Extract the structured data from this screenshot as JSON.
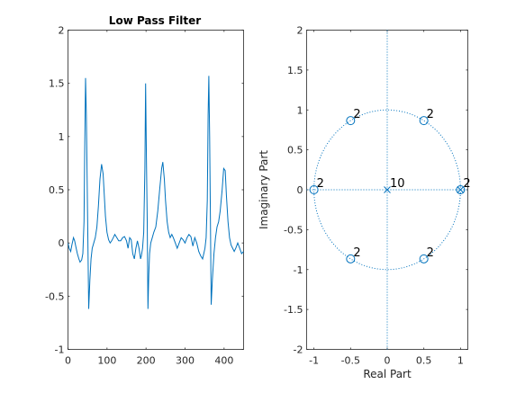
{
  "colors": {
    "axis": "#262626",
    "line": "#0072bd",
    "background": "#ffffff"
  },
  "chart_data": [
    {
      "type": "line",
      "title": "Low Pass Filter",
      "xlabel": "",
      "ylabel": "",
      "xlim": [
        0,
        450
      ],
      "ylim": [
        -1,
        2
      ],
      "xticks": [
        0,
        100,
        200,
        300,
        400
      ],
      "yticks": [
        -1,
        -0.5,
        0,
        0.5,
        1,
        1.5,
        2
      ],
      "ytick_labels": [
        "-1",
        "-0.5",
        "0",
        "0.5",
        "1",
        "1.5",
        "2"
      ],
      "grid": false,
      "series": [
        {
          "x": [
            0,
            3,
            7,
            10,
            14,
            17,
            21,
            24,
            28,
            31,
            35,
            38,
            41,
            43,
            45,
            47,
            50,
            53,
            56,
            59,
            62,
            66,
            70,
            74,
            78,
            82,
            86,
            90,
            93,
            96,
            100,
            104,
            108,
            112,
            116,
            120,
            125,
            130,
            135,
            140,
            145,
            150,
            154,
            158,
            162,
            166,
            170,
            174,
            178,
            182,
            186,
            188,
            191,
            194,
            197,
            199,
            201,
            203,
            205,
            207,
            209,
            212,
            216,
            220,
            225,
            230,
            235,
            240,
            243,
            247,
            250,
            254,
            258,
            262,
            266,
            270,
            275,
            280,
            285,
            290,
            295,
            300,
            305,
            310,
            315,
            320,
            325,
            330,
            335,
            340,
            345,
            348,
            351,
            354,
            357,
            359,
            361,
            363,
            365,
            367,
            370,
            374,
            378,
            382,
            386,
            390,
            395,
            399,
            403,
            406,
            410,
            414,
            418,
            422,
            426,
            430,
            435,
            440,
            445,
            450
          ],
          "y": [
            0,
            -0.05,
            -0.08,
            -0.02,
            0.05,
            0.02,
            -0.05,
            -0.1,
            -0.15,
            -0.18,
            -0.16,
            -0.1,
            0.2,
            0.9,
            1.55,
            1.2,
            0.3,
            -0.62,
            -0.35,
            -0.15,
            -0.05,
            0,
            0.05,
            0.15,
            0.35,
            0.6,
            0.74,
            0.65,
            0.45,
            0.25,
            0.1,
            0.03,
            0,
            0.02,
            0.05,
            0.08,
            0.05,
            0.02,
            0.02,
            0.05,
            0.06,
            0.02,
            -0.05,
            0.05,
            0.03,
            -0.1,
            -0.15,
            -0.05,
            0.02,
            -0.05,
            -0.15,
            -0.12,
            -0.05,
            0.1,
            0.7,
            1.5,
            0.8,
            0.2,
            -0.62,
            -0.3,
            -0.1,
            0,
            0.05,
            0.1,
            0.15,
            0.3,
            0.5,
            0.7,
            0.76,
            0.6,
            0.4,
            0.2,
            0.1,
            0.05,
            0.08,
            0.05,
            0,
            -0.05,
            0,
            0.05,
            0.03,
            0,
            0.05,
            0.08,
            0.06,
            -0.03,
            0.05,
            0,
            -0.08,
            -0.12,
            -0.15,
            -0.1,
            -0.05,
            0.05,
            0.4,
            1.2,
            1.57,
            1.0,
            0.2,
            -0.58,
            -0.35,
            -0.1,
            0.05,
            0.15,
            0.2,
            0.3,
            0.5,
            0.7,
            0.68,
            0.45,
            0.2,
            0.05,
            -0.02,
            -0.05,
            -0.08,
            -0.05,
            0,
            -0.05,
            -0.1,
            -0.08
          ]
        }
      ]
    },
    {
      "type": "scatter",
      "title": "",
      "xlabel": "Real Part",
      "ylabel": "Imaginary Part",
      "xlim": [
        -1.1,
        1.1
      ],
      "ylim": [
        -2,
        2
      ],
      "xticks": [
        -1,
        -0.5,
        0,
        0.5,
        1
      ],
      "xtick_labels": [
        "-1",
        "-0.5",
        "0",
        "0.5",
        "1"
      ],
      "yticks": [
        -2,
        -1.5,
        -1,
        -0.5,
        0,
        0.5,
        1,
        1.5,
        2
      ],
      "ytick_labels": [
        "-2",
        "-1.5",
        "-1",
        "-0.5",
        "0",
        "0.5",
        "1",
        "1.5",
        "2"
      ],
      "grid": false,
      "unit_circle": true,
      "axis_lines": true,
      "zeros": [
        {
          "x": 1,
          "y": 0,
          "multiplicity": "2"
        },
        {
          "x": 0.5,
          "y": 0.866,
          "multiplicity": "2"
        },
        {
          "x": -0.5,
          "y": 0.866,
          "multiplicity": "2"
        },
        {
          "x": -1,
          "y": 0,
          "multiplicity": "2"
        },
        {
          "x": -0.5,
          "y": -0.866,
          "multiplicity": "2"
        },
        {
          "x": 0.5,
          "y": -0.866,
          "multiplicity": "2"
        }
      ],
      "poles": [
        {
          "x": 0,
          "y": 0,
          "multiplicity": "10"
        },
        {
          "x": 1,
          "y": 0,
          "multiplicity": ""
        }
      ]
    }
  ]
}
